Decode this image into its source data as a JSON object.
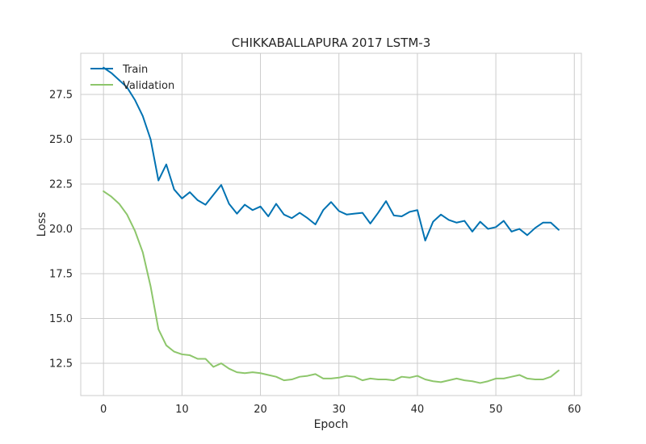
{
  "chart_data": {
    "type": "line",
    "title": "CHIKKABALLAPURA 2017 LSTM-3",
    "xlabel": "Epoch",
    "ylabel": "Loss",
    "xlim": [
      -2.9,
      60.9
    ],
    "ylim": [
      10.7,
      29.8
    ],
    "xticks": [
      0,
      10,
      20,
      30,
      40,
      50,
      60
    ],
    "yticks": [
      12.5,
      15.0,
      17.5,
      20.0,
      22.5,
      25.0,
      27.5
    ],
    "grid": true,
    "legend": "top-left",
    "series": [
      {
        "name": "Train",
        "color": "#0072b2",
        "x": [
          0,
          1,
          2,
          3,
          4,
          5,
          6,
          7,
          8,
          9,
          10,
          11,
          12,
          13,
          14,
          15,
          16,
          17,
          18,
          19,
          20,
          21,
          22,
          23,
          24,
          25,
          26,
          27,
          28,
          29,
          30,
          31,
          32,
          33,
          34,
          35,
          36,
          37,
          38,
          39,
          40,
          41,
          42,
          43,
          44,
          45,
          46,
          47,
          48,
          49,
          50,
          51,
          52,
          53,
          54,
          55,
          56,
          57,
          58
        ],
        "values": [
          29.0,
          28.7,
          28.3,
          27.9,
          27.2,
          26.3,
          25.0,
          22.7,
          23.6,
          22.2,
          21.7,
          22.05,
          21.6,
          21.35,
          21.9,
          22.45,
          21.4,
          20.85,
          21.35,
          21.05,
          21.25,
          20.7,
          21.4,
          20.8,
          20.6,
          20.9,
          20.6,
          20.25,
          21.05,
          21.5,
          21.0,
          20.8,
          20.85,
          20.9,
          20.3,
          20.9,
          21.55,
          20.75,
          20.7,
          20.95,
          21.05,
          19.35,
          20.4,
          20.8,
          20.5,
          20.35,
          20.45,
          19.85,
          20.4,
          20.0,
          20.1,
          20.45,
          19.85,
          20.0,
          19.65,
          20.05,
          20.35,
          20.35,
          19.95
        ]
      },
      {
        "name": "Validation",
        "color": "#8dc66b",
        "x": [
          0,
          1,
          2,
          3,
          4,
          5,
          6,
          7,
          8,
          9,
          10,
          11,
          12,
          13,
          14,
          15,
          16,
          17,
          18,
          19,
          20,
          21,
          22,
          23,
          24,
          25,
          26,
          27,
          28,
          29,
          30,
          31,
          32,
          33,
          34,
          35,
          36,
          37,
          38,
          39,
          40,
          41,
          42,
          43,
          44,
          45,
          46,
          47,
          48,
          49,
          50,
          51,
          52,
          53,
          54,
          55,
          56,
          57,
          58
        ],
        "values": [
          22.1,
          21.8,
          21.4,
          20.8,
          19.9,
          18.7,
          16.8,
          14.4,
          13.5,
          13.15,
          13.0,
          12.95,
          12.75,
          12.75,
          12.3,
          12.5,
          12.2,
          12.0,
          11.95,
          12.0,
          11.95,
          11.85,
          11.75,
          11.55,
          11.6,
          11.75,
          11.8,
          11.9,
          11.65,
          11.65,
          11.7,
          11.8,
          11.75,
          11.55,
          11.65,
          11.6,
          11.6,
          11.55,
          11.75,
          11.7,
          11.8,
          11.6,
          11.5,
          11.45,
          11.55,
          11.65,
          11.55,
          11.5,
          11.4,
          11.5,
          11.65,
          11.65,
          11.75,
          11.85,
          11.65,
          11.6,
          11.6,
          11.75,
          12.1
        ]
      }
    ]
  }
}
